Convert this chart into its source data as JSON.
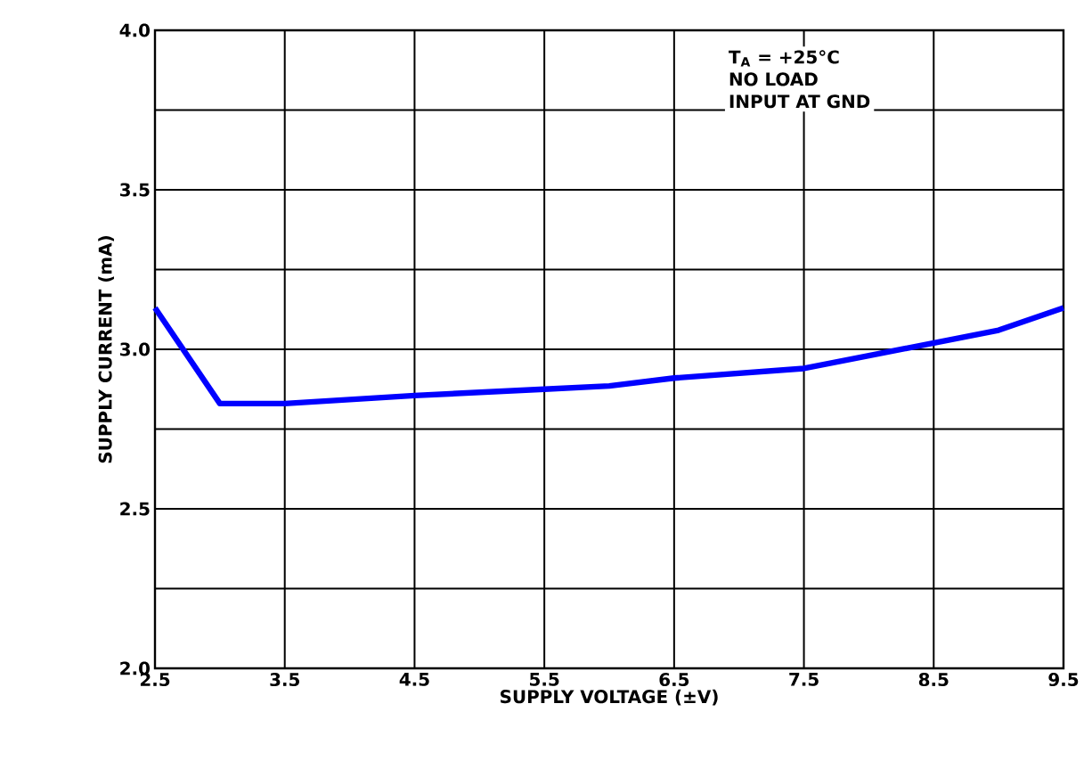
{
  "chart_data": {
    "type": "line",
    "xlabel": "SUPPLY VOLTAGE (±V)",
    "ylabel": "SUPPLY CURRENT (mA)",
    "x": [
      2.5,
      3.0,
      3.5,
      4.5,
      5.5,
      6.0,
      6.5,
      7.5,
      8.0,
      8.5,
      9.0,
      9.5
    ],
    "series": [
      {
        "color": "#0000ff",
        "values": [
          3.13,
          2.83,
          2.83,
          2.855,
          2.875,
          2.885,
          2.91,
          2.94,
          2.98,
          3.02,
          3.06,
          3.13
        ]
      }
    ],
    "xlim": [
      2.5,
      9.5
    ],
    "xticks": [
      2.5,
      3.5,
      4.5,
      5.5,
      6.5,
      7.5,
      8.5,
      9.5
    ],
    "ylim": [
      2.0,
      4.0
    ],
    "yticks": [
      {
        "value": 2.0,
        "label": "2.0"
      },
      {
        "value": 2.25,
        "label": null
      },
      {
        "value": 2.5,
        "label": "2.5"
      },
      {
        "value": 2.75,
        "label": null
      },
      {
        "value": 3.0,
        "label": "3.0"
      },
      {
        "value": 3.25,
        "label": null
      },
      {
        "value": 3.5,
        "label": "3.5"
      },
      {
        "value": 3.75,
        "label": null
      },
      {
        "value": 4.0,
        "label": "4.0"
      }
    ],
    "grid": true,
    "marker": "none",
    "line_style": "solid",
    "annotations": [
      "T$_{A}$ = +25°C",
      "NO LOAD",
      "INPUT AT GND"
    ]
  }
}
